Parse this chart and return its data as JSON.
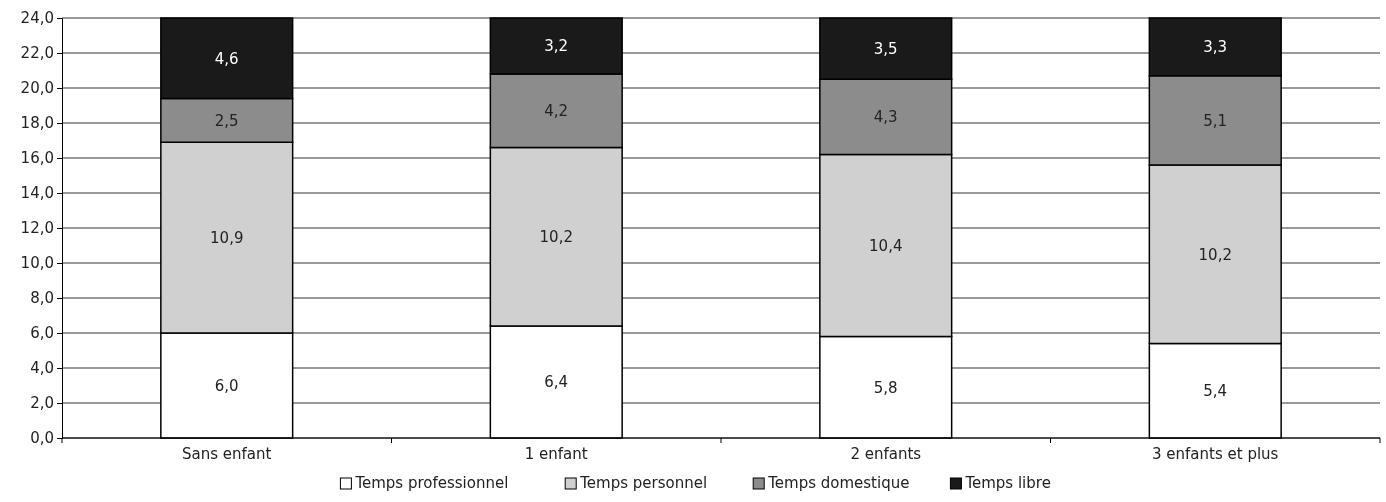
{
  "chart_data": {
    "type": "bar",
    "stacked": true,
    "categories": [
      "Sans enfant",
      "1 enfant",
      "2 enfants",
      "3 enfants et plus"
    ],
    "series": [
      {
        "name": "Temps professionnel",
        "color": "#ffffff",
        "values": [
          6.0,
          6.4,
          5.8,
          5.4
        ],
        "value_labels": [
          "6,0",
          "6,4",
          "5,8",
          "5,4"
        ]
      },
      {
        "name": "Temps personnel",
        "color": "#d0d0d0",
        "values": [
          10.9,
          10.2,
          10.4,
          10.2
        ],
        "value_labels": [
          "10,9",
          "10,2",
          "10,4",
          "10,2"
        ]
      },
      {
        "name": "Temps domestique",
        "color": "#8c8c8c",
        "values": [
          2.5,
          4.2,
          4.3,
          5.1
        ],
        "value_labels": [
          "2,5",
          "4,2",
          "4,3",
          "5,1"
        ]
      },
      {
        "name": "Temps libre",
        "color": "#1a1a1a",
        "values": [
          4.6,
          3.2,
          3.5,
          3.3
        ],
        "value_labels": [
          "4,6",
          "3,2",
          "3,5",
          "3,3"
        ]
      }
    ],
    "ylim": [
      0,
      24
    ],
    "yticks": [
      {
        "value": 0,
        "label": "0,0"
      },
      {
        "value": 2,
        "label": "2,0"
      },
      {
        "value": 4,
        "label": "4,0"
      },
      {
        "value": 6,
        "label": "6,0"
      },
      {
        "value": 8,
        "label": "8,0"
      },
      {
        "value": 10,
        "label": "10,0"
      },
      {
        "value": 12,
        "label": "12,0"
      },
      {
        "value": 14,
        "label": "14,0"
      },
      {
        "value": 16,
        "label": "16,0"
      },
      {
        "value": 18,
        "label": "18,0"
      },
      {
        "value": 20,
        "label": "20,0"
      },
      {
        "value": 22,
        "label": "22,0"
      },
      {
        "value": 24,
        "label": "24,0"
      }
    ],
    "grid": "y",
    "legend": "bottom"
  }
}
